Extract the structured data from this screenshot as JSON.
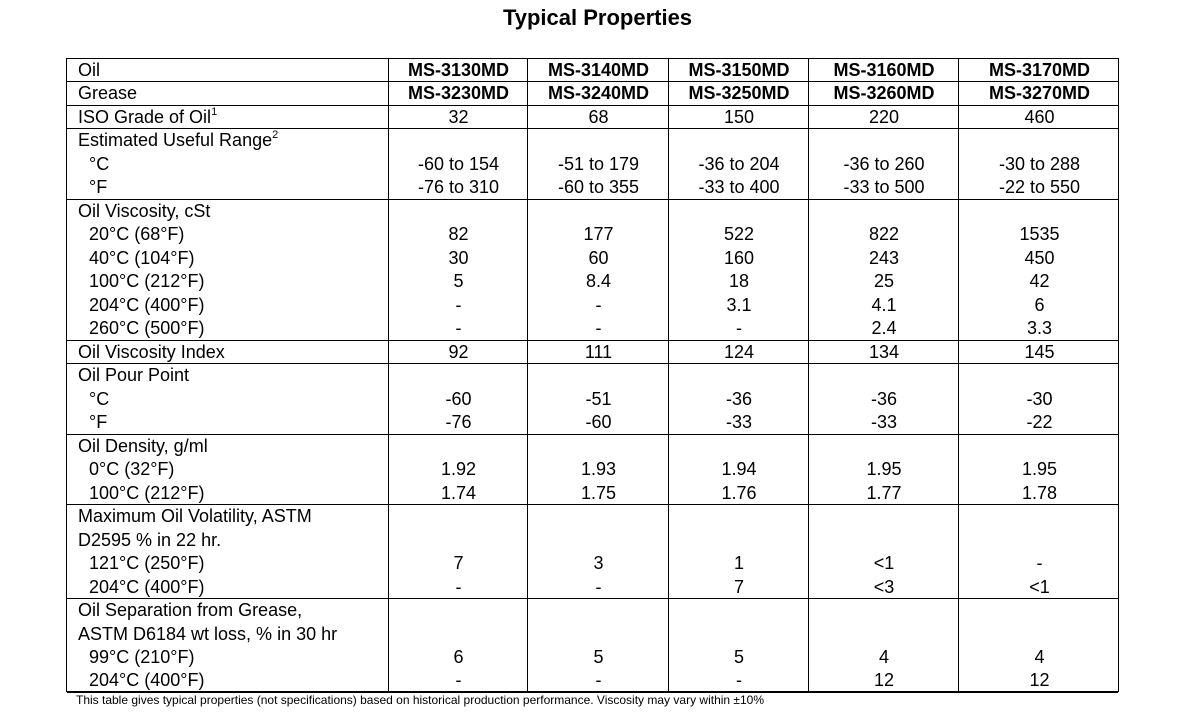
{
  "header": {
    "title": "Typical Properties"
  },
  "table": {
    "groups": [
      {
        "rows": [
          {
            "label": "Oil",
            "values": [
              "MS-3130MD",
              "MS-3140MD",
              "MS-3150MD",
              "MS-3160MD",
              "MS-3170MD"
            ]
          }
        ]
      },
      {
        "rows": [
          {
            "label": "Grease",
            "values": [
              "MS-3230MD",
              "MS-3240MD",
              "MS-3250MD",
              "MS-3260MD",
              "MS-3270MD"
            ]
          }
        ]
      },
      {
        "rows": [
          {
            "label": "ISO Grade of Oil",
            "sup": "1",
            "values": [
              "32",
              "68",
              "150",
              "220",
              "460"
            ]
          }
        ]
      },
      {
        "rows": [
          {
            "label": "Estimated Useful Range",
            "sup": "2"
          },
          {
            "label": "°C",
            "values": [
              "-60 to 154",
              "-51 to 179",
              "-36 to 204",
              "-36 to 260",
              "-30 to 288"
            ]
          },
          {
            "label": "°F",
            "values": [
              "-76 to 310",
              "-60 to 355",
              "-33 to 400",
              "-33 to 500",
              "-22 to 550"
            ]
          }
        ]
      },
      {
        "rows": [
          {
            "label": "Oil Viscosity, cSt"
          },
          {
            "label": "20°C (68°F)",
            "values": [
              "82",
              "177",
              "522",
              "822",
              "1535"
            ]
          },
          {
            "label": "40°C (104°F)",
            "values": [
              "30",
              "60",
              "160",
              "243",
              "450"
            ]
          },
          {
            "label": "100°C (212°F)",
            "values": [
              "5",
              "8.4",
              "18",
              "25",
              "42"
            ]
          },
          {
            "label": "204°C (400°F)",
            "values": [
              "-",
              "-",
              "3.1",
              "4.1",
              "6"
            ]
          },
          {
            "label": "260°C (500°F)",
            "values": [
              "-",
              "-",
              "-",
              "2.4",
              "3.3"
            ]
          }
        ]
      },
      {
        "rows": [
          {
            "label": "Oil Viscosity Index",
            "values": [
              "92",
              "111",
              "124",
              "134",
              "145"
            ]
          }
        ]
      },
      {
        "rows": [
          {
            "label": "Oil Pour Point"
          },
          {
            "label": "°C",
            "values": [
              "-60",
              "-51",
              "-36",
              "-36",
              "-30"
            ]
          },
          {
            "label": "°F",
            "values": [
              "-76",
              "-60",
              "-33",
              "-33",
              "-22"
            ]
          }
        ]
      },
      {
        "rows": [
          {
            "label": "Oil Density, g/ml"
          },
          {
            "label": "0°C (32°F)",
            "values": [
              "1.92",
              "1.93",
              "1.94",
              "1.95",
              "1.95"
            ]
          },
          {
            "label": "100°C (212°F)",
            "values": [
              "1.74",
              "1.75",
              "1.76",
              "1.77",
              "1.78"
            ]
          }
        ]
      },
      {
        "rows": [
          {
            "label": "Maximum Oil Volatility, ASTM"
          },
          {
            "label": "D2595 % in 22 hr."
          },
          {
            "label": "121°C (250°F)",
            "values": [
              "7",
              "3",
              "1",
              "<1",
              "-"
            ]
          },
          {
            "label": "204°C (400°F)",
            "values": [
              "-",
              "-",
              "7",
              "<3",
              "<1"
            ]
          }
        ]
      },
      {
        "rows": [
          {
            "label": "Oil Separation from Grease,"
          },
          {
            "label": "ASTM D6184 wt loss, % in 30 hr"
          },
          {
            "label": "99°C (210°F)",
            "values": [
              "6",
              "5",
              "5",
              "4",
              "4"
            ]
          },
          {
            "label": "204°C (400°F)",
            "values": [
              "-",
              "-",
              "-",
              "12",
              "12"
            ]
          }
        ]
      }
    ]
  },
  "footnote": "This table gives typical properties (not specifications) based on historical production performance. Viscosity may vary within ±10%"
}
